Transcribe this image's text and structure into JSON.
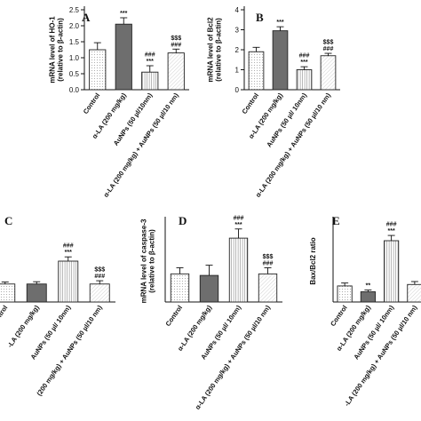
{
  "chart_data": [
    {
      "panel": "A",
      "type": "bar",
      "ylabel": "mRNA level of HO-1\n(relative to β-actin)",
      "yticks": [
        0.0,
        0.5,
        1.0,
        1.5,
        2.0,
        2.5
      ],
      "ylim": [
        0,
        2.5
      ],
      "categories": [
        "Control",
        "α-LA (200 mg/kg)",
        "AuNPs (50 µl/10nm)",
        "α-LA (200 mg/kg) + AuNPs (50 µl/10 nm)"
      ],
      "values": [
        1.25,
        2.05,
        0.55,
        1.15
      ],
      "errors": [
        0.22,
        0.2,
        0.2,
        0.12
      ],
      "annotations": [
        [],
        [
          "***"
        ],
        [
          "***",
          "###"
        ],
        [
          "###",
          "$$$"
        ]
      ],
      "fills": [
        "dots",
        "dark",
        "vlines",
        "hatch"
      ]
    },
    {
      "panel": "B",
      "type": "bar",
      "ylabel": "mRNA level of Bcl2\n(relative to β-actin)",
      "yticks": [
        0,
        1,
        2,
        3,
        4
      ],
      "ylim": [
        0,
        4
      ],
      "categories": [
        "Control",
        "α-LA (200 mg/kg)",
        "AuNPs (50 µl/ 10nm)",
        "α-LA (200 mg/kg) + AuNPs (50 µl/10 nm)"
      ],
      "values": [
        1.9,
        2.95,
        1.0,
        1.7
      ],
      "errors": [
        0.22,
        0.2,
        0.15,
        0.12
      ],
      "annotations": [
        [],
        [
          "***"
        ],
        [
          "***",
          "###"
        ],
        [
          "###",
          "$$$"
        ]
      ],
      "fills": [
        "dots",
        "dark",
        "vlines",
        "hatch"
      ]
    },
    {
      "panel": "C",
      "type": "bar",
      "ylabel": "",
      "yticks": [],
      "ylim": [
        0,
        2.5
      ],
      "categories": [
        "ontrol",
        "-LA (200 mg/kg)",
        "AuNPs (50 µl/ 10nm)",
        "(200 mg/kg) + AuNPs (50 µl/10 nm)"
      ],
      "values": [
        0.55,
        0.55,
        1.25,
        0.55
      ],
      "errors": [
        0.06,
        0.07,
        0.13,
        0.1
      ],
      "annotations": [
        [],
        [],
        [
          "***",
          "###"
        ],
        [
          "###",
          "$$$"
        ]
      ],
      "fills": [
        "dots",
        "dark",
        "vlines",
        "hatch"
      ]
    },
    {
      "panel": "D",
      "type": "bar",
      "ylabel": "mRNA level of caspase-3\n(relative to β-actin)",
      "yticks": [],
      "ylim": [
        0,
        1.6
      ],
      "categories": [
        "Control",
        "α-LA (200 mg/kg)",
        "AuNPs (50 µl/ 10nm)",
        "α-LA (200 mg/kg) + AuNPs (50 µl/10 nm)"
      ],
      "values": [
        0.55,
        0.52,
        1.25,
        0.55
      ],
      "errors": [
        0.12,
        0.2,
        0.18,
        0.12
      ],
      "annotations": [
        [],
        [],
        [
          "***",
          "###"
        ],
        [
          "###",
          "$$$"
        ]
      ],
      "fills": [
        "dots",
        "dark",
        "vlines",
        "hatch"
      ]
    },
    {
      "panel": "E",
      "type": "bar",
      "ylabel": "Bax/Bcl2 ratio",
      "yticks": [],
      "ylim": [
        0,
        2.8
      ],
      "categories": [
        "Control",
        "α-LA (200 mg/kg)",
        "AuNPs (50 µl/ 10nm)",
        "-LA (200 mg/kg) + AuNPs (50 µl/10 nm)"
      ],
      "values": [
        0.55,
        0.35,
        2.1,
        0.6
      ],
      "errors": [
        0.1,
        0.06,
        0.18,
        0.1
      ],
      "annotations": [
        [],
        [
          "**"
        ],
        [
          "***",
          "###"
        ],
        []
      ],
      "fills": [
        "dots",
        "dark",
        "vlines",
        "hatch"
      ]
    }
  ]
}
